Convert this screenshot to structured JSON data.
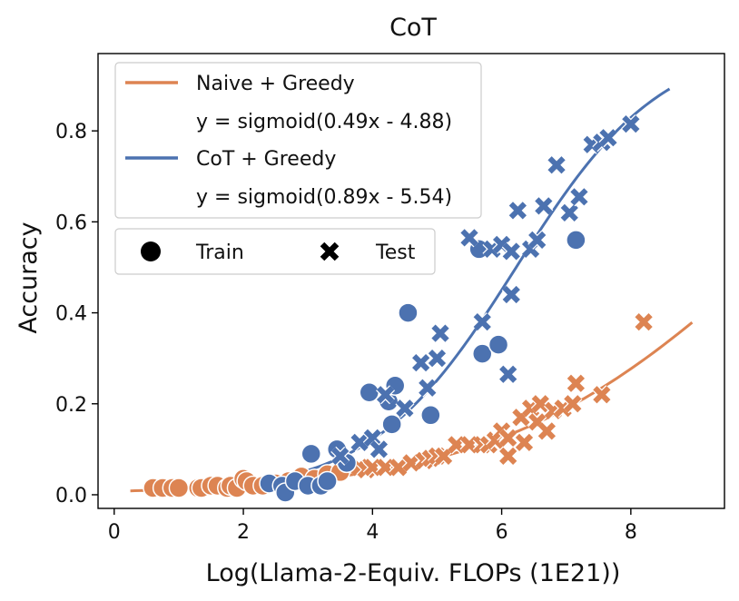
{
  "chart_data": {
    "type": "scatter",
    "title": "CoT",
    "xlabel": "Log(Llama-2-Equiv. FLOPs (1E21))",
    "ylabel": "Accuracy",
    "xlim": [
      -0.25,
      9.45
    ],
    "ylim": [
      -0.03,
      0.97
    ],
    "xticks": [
      "0",
      "2",
      "4",
      "6",
      "8"
    ],
    "yticks": [
      "0.0",
      "0.2",
      "0.4",
      "0.6",
      "0.8"
    ],
    "grid": false,
    "legend_fits": {
      "placement": "top-left",
      "entries": [
        {
          "label": "Naive + Greedy",
          "formula": "y = sigmoid(0.49x - 4.88)",
          "color": "#dd8452"
        },
        {
          "label": "CoT + Greedy",
          "formula": "y = sigmoid(0.89x - 5.54)",
          "color": "#4c72b0"
        }
      ]
    },
    "legend_markers": {
      "entries": [
        {
          "label": "Train",
          "marker": "circle"
        },
        {
          "label": "Test",
          "marker": "x"
        }
      ]
    },
    "fits": [
      {
        "name": "Naive + Greedy",
        "a": 0.49,
        "b": -4.88,
        "x_range": [
          0.25,
          8.95
        ],
        "color": "#dd8452"
      },
      {
        "name": "CoT + Greedy",
        "a": 0.89,
        "b": -5.54,
        "x_range": [
          2.25,
          8.6
        ],
        "color": "#4c72b0"
      }
    ],
    "series": [
      {
        "name": "Naive + Greedy",
        "color": "#dd8452",
        "train": [
          [
            0.6,
            0.015
          ],
          [
            0.75,
            0.015
          ],
          [
            0.9,
            0.015
          ],
          [
            1.0,
            0.015
          ],
          [
            1.3,
            0.015
          ],
          [
            1.35,
            0.015
          ],
          [
            1.5,
            0.02
          ],
          [
            1.6,
            0.02
          ],
          [
            1.75,
            0.015
          ],
          [
            1.8,
            0.02
          ],
          [
            1.9,
            0.015
          ],
          [
            2.0,
            0.035
          ],
          [
            2.05,
            0.03
          ],
          [
            2.15,
            0.02
          ],
          [
            2.3,
            0.02
          ],
          [
            2.5,
            0.025
          ],
          [
            2.7,
            0.03
          ],
          [
            2.9,
            0.04
          ],
          [
            3.1,
            0.035
          ],
          [
            3.3,
            0.045
          ],
          [
            3.5,
            0.05
          ]
        ],
        "test": [
          [
            3.8,
            0.06
          ],
          [
            3.9,
            0.055
          ],
          [
            4.0,
            0.06
          ],
          [
            4.2,
            0.06
          ],
          [
            4.4,
            0.06
          ],
          [
            4.6,
            0.07
          ],
          [
            4.8,
            0.075
          ],
          [
            4.9,
            0.08
          ],
          [
            5.0,
            0.085
          ],
          [
            5.1,
            0.085
          ],
          [
            5.3,
            0.11
          ],
          [
            5.5,
            0.11
          ],
          [
            5.7,
            0.11
          ],
          [
            5.8,
            0.11
          ],
          [
            5.9,
            0.12
          ],
          [
            6.0,
            0.14
          ],
          [
            6.1,
            0.125
          ],
          [
            6.1,
            0.085
          ],
          [
            6.3,
            0.17
          ],
          [
            6.35,
            0.115
          ],
          [
            6.45,
            0.19
          ],
          [
            6.55,
            0.16
          ],
          [
            6.6,
            0.2
          ],
          [
            6.7,
            0.14
          ],
          [
            6.8,
            0.185
          ],
          [
            6.95,
            0.19
          ],
          [
            7.1,
            0.2
          ],
          [
            7.15,
            0.245
          ],
          [
            7.55,
            0.22
          ],
          [
            8.2,
            0.38
          ]
        ]
      },
      {
        "name": "CoT + Greedy",
        "color": "#4c72b0",
        "train": [
          [
            2.4,
            0.025
          ],
          [
            2.6,
            0.02
          ],
          [
            2.65,
            0.005
          ],
          [
            2.8,
            0.03
          ],
          [
            3.0,
            0.02
          ],
          [
            3.05,
            0.09
          ],
          [
            3.2,
            0.02
          ],
          [
            3.3,
            0.03
          ],
          [
            3.45,
            0.1
          ],
          [
            3.6,
            0.07
          ],
          [
            3.95,
            0.225
          ],
          [
            4.25,
            0.205
          ],
          [
            4.3,
            0.155
          ],
          [
            4.35,
            0.24
          ],
          [
            4.55,
            0.4
          ],
          [
            4.9,
            0.175
          ],
          [
            5.65,
            0.54
          ],
          [
            5.7,
            0.31
          ],
          [
            5.95,
            0.33
          ],
          [
            7.15,
            0.56
          ]
        ],
        "test": [
          [
            3.5,
            0.085
          ],
          [
            3.8,
            0.115
          ],
          [
            4.0,
            0.125
          ],
          [
            4.1,
            0.1
          ],
          [
            4.2,
            0.22
          ],
          [
            4.5,
            0.19
          ],
          [
            4.75,
            0.29
          ],
          [
            4.85,
            0.235
          ],
          [
            5.0,
            0.3
          ],
          [
            5.05,
            0.355
          ],
          [
            5.5,
            0.565
          ],
          [
            5.7,
            0.38
          ],
          [
            5.85,
            0.54
          ],
          [
            6.0,
            0.55
          ],
          [
            6.15,
            0.44
          ],
          [
            6.1,
            0.265
          ],
          [
            6.15,
            0.535
          ],
          [
            6.25,
            0.625
          ],
          [
            6.45,
            0.54
          ],
          [
            6.55,
            0.56
          ],
          [
            6.65,
            0.635
          ],
          [
            6.85,
            0.725
          ],
          [
            7.05,
            0.62
          ],
          [
            7.2,
            0.655
          ],
          [
            7.4,
            0.77
          ],
          [
            7.55,
            0.775
          ],
          [
            7.65,
            0.785
          ],
          [
            8.0,
            0.815
          ]
        ]
      }
    ]
  }
}
